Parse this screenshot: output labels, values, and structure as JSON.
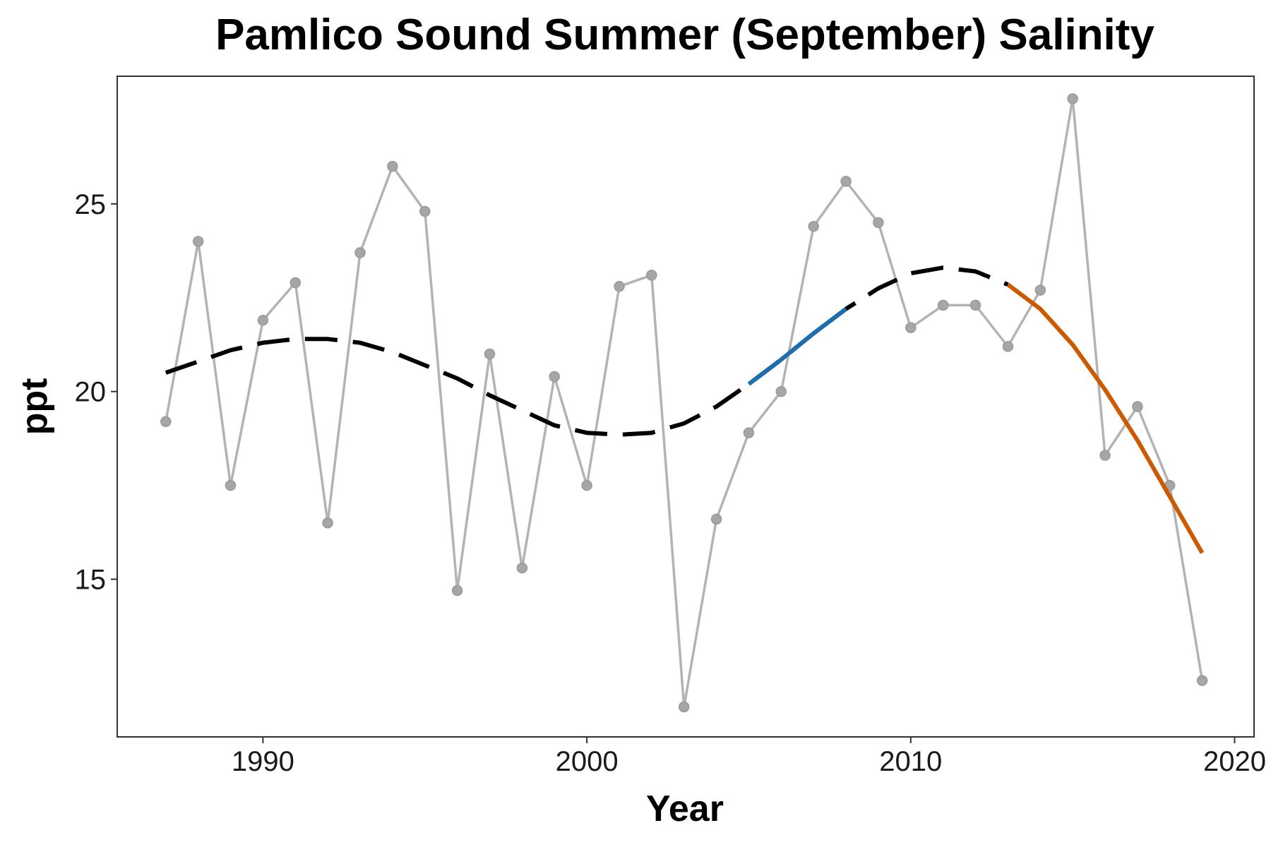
{
  "chart_data": {
    "type": "line",
    "title": "Pamlico Sound Summer (September) Salinity",
    "xlabel": "Year",
    "ylabel": "ppt",
    "xlim": [
      1985.5,
      2020.6
    ],
    "ylim": [
      10.8,
      28.4
    ],
    "x_ticks": [
      1990,
      2000,
      2010,
      2020
    ],
    "x_tick_labels": [
      "1990",
      "2000",
      "2010",
      "2020"
    ],
    "y_ticks": [
      15,
      20,
      25
    ],
    "y_tick_labels": [
      "15",
      "20",
      "25"
    ],
    "grid": false,
    "legend": "none",
    "series": [
      {
        "style": "observed",
        "color": "#b3b3b3",
        "point_color": "#a6a6a6",
        "x": [
          1987,
          1988,
          1989,
          1990,
          1991,
          1992,
          1993,
          1994,
          1995,
          1996,
          1997,
          1998,
          1999,
          2000,
          2001,
          2002,
          2003,
          2004,
          2005,
          2006,
          2007,
          2008,
          2009,
          2010,
          2011,
          2012,
          2013,
          2014,
          2015,
          2016,
          2017,
          2018,
          2019
        ],
        "values": [
          19.2,
          24.0,
          17.5,
          21.9,
          22.9,
          16.5,
          23.7,
          26.0,
          24.8,
          14.7,
          21.0,
          15.3,
          20.4,
          17.5,
          22.8,
          23.1,
          11.6,
          16.6,
          18.9,
          20.0,
          24.4,
          25.6,
          24.5,
          21.7,
          22.3,
          22.3,
          21.2,
          22.7,
          27.8,
          18.3,
          19.6,
          17.5,
          12.3
        ]
      },
      {
        "style": "trend-dashed",
        "color": "#000000",
        "x": [
          1987,
          1988,
          1989,
          1990,
          1991,
          1992,
          1993,
          1994,
          1995,
          1996,
          1997,
          1998,
          1999,
          2000,
          2001,
          2002,
          2003,
          2004,
          2005,
          2006,
          2007,
          2008,
          2009,
          2010,
          2011,
          2012,
          2013
        ],
        "values": [
          20.5,
          20.8,
          21.1,
          21.3,
          21.4,
          21.4,
          21.3,
          21.05,
          20.7,
          20.35,
          19.9,
          19.5,
          19.1,
          18.9,
          18.85,
          18.9,
          19.15,
          19.6,
          20.2,
          20.85,
          21.55,
          22.2,
          22.75,
          23.15,
          23.3,
          23.2,
          22.85
        ]
      },
      {
        "style": "increasing",
        "color": "#1b6fae",
        "x": [
          2005,
          2006,
          2007,
          2008
        ],
        "values": [
          20.2,
          20.85,
          21.55,
          22.2
        ]
      },
      {
        "style": "decreasing",
        "color": "#cc5a00",
        "x": [
          2013,
          2014,
          2015,
          2016,
          2017,
          2018,
          2019
        ],
        "values": [
          22.85,
          22.2,
          21.25,
          20.05,
          18.7,
          17.2,
          15.7
        ]
      }
    ]
  }
}
